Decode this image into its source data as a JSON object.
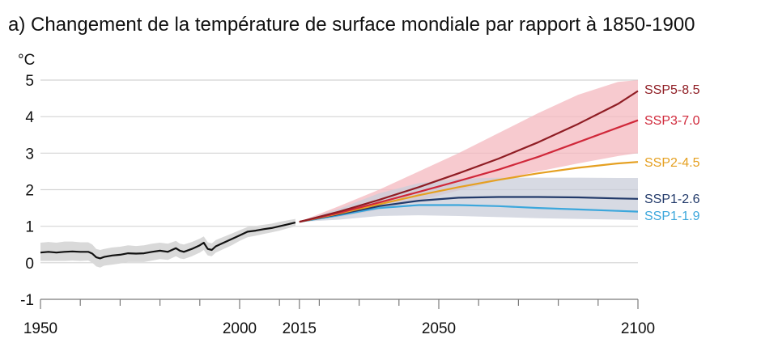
{
  "chart_data": {
    "type": "line",
    "title": "a) Changement de la température de surface mondiale par rapport à 1850-1900",
    "ylabel": "°C",
    "xlabel": "",
    "xlim": [
      1950,
      2100
    ],
    "ylim": [
      -1,
      5
    ],
    "yticks": [
      5,
      4,
      3,
      2,
      1,
      0,
      -1
    ],
    "xtick_labels": [
      1950,
      2000,
      2015,
      2050,
      2100
    ],
    "xticks_minor": [
      1960,
      1970,
      1980,
      1990,
      2010,
      2020,
      2030,
      2040,
      2060,
      2070,
      2080,
      2090
    ],
    "grid": true,
    "legend": "direct labels at right end of lines",
    "observed": {
      "color": "#111111",
      "band_color": "#d9d9d9",
      "x": [
        1950,
        1952,
        1954,
        1956,
        1958,
        1960,
        1962,
        1963,
        1964,
        1965,
        1966,
        1968,
        1970,
        1972,
        1974,
        1976,
        1978,
        1980,
        1982,
        1984,
        1985,
        1986,
        1988,
        1990,
        1991,
        1992,
        1993,
        1994,
        1996,
        1998,
        2000,
        2002,
        2004,
        2006,
        2008,
        2010,
        2012,
        2014
      ],
      "values": [
        0.28,
        0.3,
        0.28,
        0.3,
        0.31,
        0.3,
        0.3,
        0.25,
        0.15,
        0.12,
        0.16,
        0.2,
        0.22,
        0.26,
        0.25,
        0.26,
        0.3,
        0.33,
        0.3,
        0.4,
        0.33,
        0.3,
        0.38,
        0.48,
        0.55,
        0.38,
        0.35,
        0.45,
        0.55,
        0.65,
        0.75,
        0.85,
        0.88,
        0.92,
        0.95,
        1.0,
        1.05,
        1.1
      ],
      "band_lower": [
        0.05,
        0.05,
        0.05,
        0.05,
        0.06,
        0.05,
        0.06,
        0.0,
        -0.1,
        -0.13,
        -0.08,
        -0.05,
        -0.02,
        0.02,
        0.02,
        0.02,
        0.06,
        0.1,
        0.08,
        0.18,
        0.12,
        0.1,
        0.18,
        0.28,
        0.35,
        0.2,
        0.18,
        0.28,
        0.38,
        0.48,
        0.6,
        0.7,
        0.74,
        0.79,
        0.83,
        0.88,
        0.94,
        1.0
      ],
      "band_upper": [
        0.55,
        0.57,
        0.55,
        0.58,
        0.58,
        0.56,
        0.56,
        0.5,
        0.38,
        0.35,
        0.38,
        0.42,
        0.44,
        0.48,
        0.46,
        0.48,
        0.52,
        0.55,
        0.52,
        0.6,
        0.52,
        0.5,
        0.57,
        0.66,
        0.72,
        0.56,
        0.53,
        0.62,
        0.71,
        0.8,
        0.89,
        0.98,
        1.01,
        1.04,
        1.07,
        1.12,
        1.16,
        1.2
      ]
    },
    "projection_x": [
      2015,
      2025,
      2035,
      2045,
      2055,
      2065,
      2075,
      2085,
      2095,
      2100
    ],
    "series": [
      {
        "name": "SSP5-8.5",
        "color": "#8f1d24",
        "values": [
          1.12,
          1.4,
          1.72,
          2.07,
          2.45,
          2.85,
          3.3,
          3.8,
          4.35,
          4.7
        ]
      },
      {
        "name": "SSP3-7.0",
        "color": "#d0283a",
        "values": [
          1.12,
          1.37,
          1.65,
          1.94,
          2.24,
          2.55,
          2.9,
          3.3,
          3.7,
          3.9
        ]
      },
      {
        "name": "SSP2-4.5",
        "color": "#e5a021",
        "values": [
          1.12,
          1.35,
          1.6,
          1.85,
          2.07,
          2.27,
          2.45,
          2.6,
          2.72,
          2.76
        ]
      },
      {
        "name": "SSP1-2.6",
        "color": "#223a6a",
        "values": [
          1.12,
          1.33,
          1.55,
          1.7,
          1.78,
          1.8,
          1.8,
          1.79,
          1.76,
          1.75
        ]
      },
      {
        "name": "SSP1-1.9",
        "color": "#3ca7dc",
        "values": [
          1.12,
          1.3,
          1.5,
          1.58,
          1.58,
          1.55,
          1.5,
          1.46,
          1.42,
          1.4
        ]
      }
    ],
    "bands": [
      {
        "for": "SSP5-8.5/SSP3-7.0",
        "color": "#f4b8bf",
        "lower": [
          1.12,
          1.25,
          1.45,
          1.7,
          1.98,
          2.25,
          2.5,
          2.72,
          2.92,
          3.0
        ],
        "upper": [
          1.12,
          1.55,
          2.0,
          2.5,
          3.0,
          3.55,
          4.1,
          4.6,
          4.95,
          5.0
        ]
      },
      {
        "for": "SSP1-2.6",
        "color": "#c9ced9",
        "lower": [
          1.12,
          1.18,
          1.28,
          1.3,
          1.28,
          1.25,
          1.22,
          1.2,
          1.18,
          1.17
        ],
        "upper": [
          1.12,
          1.48,
          1.9,
          2.18,
          2.3,
          2.33,
          2.33,
          2.33,
          2.32,
          2.32
        ]
      }
    ]
  }
}
